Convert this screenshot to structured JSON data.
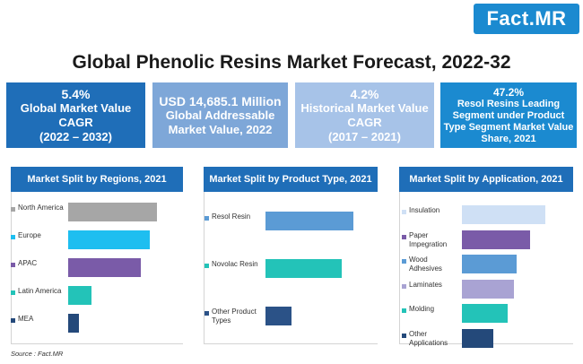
{
  "logo": {
    "text": "Fact.MR"
  },
  "title": "Global Phenolic Resins Market Forecast, 2022-32",
  "kpis": [
    {
      "value": "5.4%",
      "desc": "Global Market Value CAGR",
      "extra": "(2022 – 2032)",
      "color": "#1f6eb8"
    },
    {
      "value": "USD 14,685.1 Million",
      "desc": "Global Addressable Market Value, 2022",
      "extra": "",
      "color": "#7ea7d8"
    },
    {
      "value": "4.2%",
      "desc": "Historical Market Value CAGR",
      "extra": "(2017 – 2021)",
      "color": "#a7c3e8"
    },
    {
      "value": "47.2%",
      "desc": "Resol Resins Leading Segment under Product Type Segment Market Value Share, 2021",
      "extra": "",
      "color": "#1b8ad0"
    }
  ],
  "chart_data": [
    {
      "type": "bar",
      "orientation": "horizontal",
      "title": "Market Split by Regions, 2021",
      "categories": [
        "North America",
        "Europe",
        "APAC",
        "Latin America",
        "MEA"
      ],
      "values": [
        100,
        92,
        82,
        26,
        12
      ],
      "colors": [
        "#a6a6a6",
        "#1ebef0",
        "#7a5ba8",
        "#23c3b8",
        "#24497a"
      ]
    },
    {
      "type": "bar",
      "orientation": "horizontal",
      "title": "Market Split by Product Type, 2021",
      "categories": [
        "Resol Resin",
        "Novolac Resin",
        "Other Product Types"
      ],
      "values": [
        100,
        87,
        30
      ],
      "colors": [
        "#5b9bd5",
        "#23c3b8",
        "#2b5287"
      ]
    },
    {
      "type": "bar",
      "orientation": "horizontal",
      "title": "Market Split by Application, 2021",
      "categories": [
        "Insulation",
        "Paper Impegration",
        "Wood Adhesives",
        "Laminates",
        "Molding",
        "Other Applications"
      ],
      "values": [
        100,
        82,
        66,
        62,
        55,
        38
      ],
      "colors": [
        "#cfe0f5",
        "#7a5ba8",
        "#5b9bd5",
        "#a9a3d3",
        "#23c3b8",
        "#24497a"
      ]
    }
  ],
  "source": "Source : Fact.MR"
}
